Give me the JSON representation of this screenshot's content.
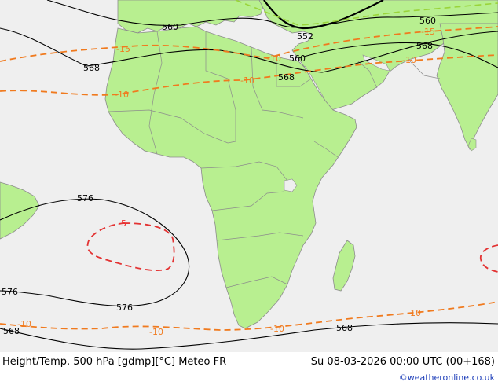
{
  "title": "Height/Temp. 500 hPa [gdmp][°C] Meteo FR",
  "valid_time": "Su 08-03-2026 00:00 UTC (00+168)",
  "credit": "©weatheronline.co.uk",
  "colors": {
    "sea": "#efefef",
    "land": "#b8ef90",
    "border": "#8c8c8c",
    "height_contour": "#000000",
    "temp_contour": "#f07a1e",
    "temp_warm_contour": "#e33333",
    "temp_cold_contour": "#9ad43a"
  },
  "height_labels": [
    "560",
    "552",
    "560",
    "568",
    "560",
    "568",
    "568",
    "576",
    "576",
    "576",
    "568",
    "568"
  ],
  "temp_labels": [
    "-15",
    "-10",
    "-15",
    "-10",
    "-10",
    "-10",
    "-10",
    "-10",
    "-10",
    "-10"
  ],
  "warm_labels": [
    "-5"
  ]
}
